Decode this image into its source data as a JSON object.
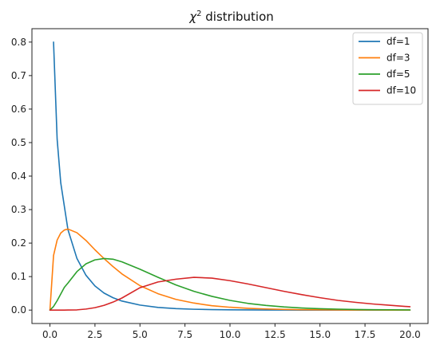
{
  "chart_data": {
    "type": "line",
    "title": "χ² distribution",
    "title_main": "χ",
    "title_sup": "2",
    "title_rest": " distribution",
    "xlabel": "",
    "ylabel": "",
    "xlim": [
      -1.0,
      21.0
    ],
    "ylim": [
      -0.04,
      0.84
    ],
    "xticks": [
      0.0,
      2.5,
      5.0,
      7.5,
      10.0,
      12.5,
      15.0,
      17.5,
      20.0
    ],
    "xtick_labels": [
      "0.0",
      "2.5",
      "5.0",
      "7.5",
      "10.0",
      "12.5",
      "15.0",
      "17.5",
      "20.0"
    ],
    "yticks": [
      0.0,
      0.1,
      0.2,
      0.3,
      0.4,
      0.5,
      0.6,
      0.7,
      0.8
    ],
    "ytick_labels": [
      "0.0",
      "0.1",
      "0.2",
      "0.3",
      "0.4",
      "0.5",
      "0.6",
      "0.7",
      "0.8"
    ],
    "grid": false,
    "legend_position": "top-right",
    "x": [
      0,
      0.2,
      0.4,
      0.6,
      0.8,
      1.0,
      1.5,
      2.0,
      2.5,
      3.0,
      3.5,
      4.0,
      5.0,
      6.0,
      7.0,
      8.0,
      9.0,
      10.0,
      11.0,
      12.0,
      13.0,
      14.0,
      15.0,
      16.0,
      17.0,
      18.0,
      19.0,
      20.0
    ],
    "series": [
      {
        "name": "df=1",
        "color": "#1f77b4",
        "start_index": 1,
        "values": [
          null,
          0.8,
          0.51,
          0.38,
          0.31,
          0.24,
          0.154,
          0.104,
          0.072,
          0.051,
          0.037,
          0.027,
          0.015,
          0.008,
          0.0045,
          0.0025,
          0.0015,
          0.0009,
          0.0005,
          0.0003,
          0.0002,
          0.0001,
          0.0001,
          0.0,
          0.0,
          0.0,
          0.0,
          0.0
        ]
      },
      {
        "name": "df=3",
        "color": "#ff7f0e",
        "start_index": 0,
        "values": [
          0.0,
          0.163,
          0.209,
          0.23,
          0.239,
          0.242,
          0.231,
          0.208,
          0.18,
          0.154,
          0.13,
          0.108,
          0.073,
          0.049,
          0.032,
          0.021,
          0.013,
          0.0085,
          0.0054,
          0.0034,
          0.0021,
          0.0013,
          0.0008,
          0.0005,
          0.0003,
          0.0002,
          0.0001,
          0.0001
        ]
      },
      {
        "name": "df=5",
        "color": "#2ca02c",
        "start_index": 0,
        "values": [
          0.0,
          0.0108,
          0.0281,
          0.048,
          0.068,
          0.0807,
          0.115,
          0.138,
          0.15,
          0.154,
          0.152,
          0.144,
          0.122,
          0.098,
          0.075,
          0.056,
          0.041,
          0.029,
          0.02,
          0.014,
          0.0094,
          0.0063,
          0.0042,
          0.0028,
          0.0018,
          0.0012,
          0.0008,
          0.0005
        ]
      },
      {
        "name": "df=10",
        "color": "#d62728",
        "start_index": 0,
        "values": [
          0.0,
          0.0,
          0.0,
          0.0,
          0.0001,
          0.0002,
          0.0007,
          0.0031,
          0.0073,
          0.0141,
          0.0238,
          0.0361,
          0.0668,
          0.084,
          0.0923,
          0.0977,
          0.0955,
          0.0878,
          0.078,
          0.067,
          0.056,
          0.046,
          0.037,
          0.029,
          0.023,
          0.018,
          0.014,
          0.01
        ]
      }
    ]
  }
}
